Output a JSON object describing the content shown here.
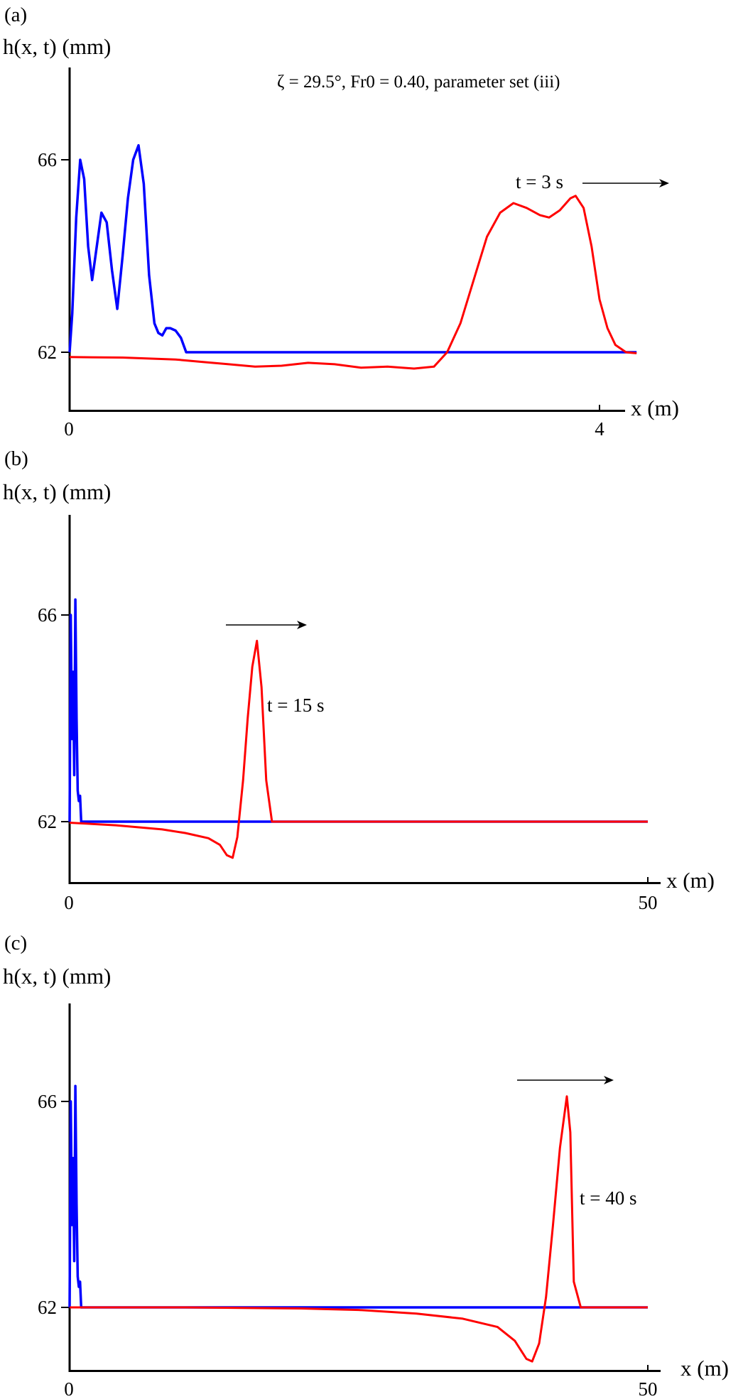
{
  "chart_data": [
    {
      "type": "line",
      "panel_label": "(a)",
      "ylabel": "h(x, t) (mm)",
      "xlabel": "x (m)",
      "annotation": "ζ = 29.5°, Fr0 = 0.40, parameter set (iii)",
      "time_label": "t = 3 s",
      "x_ticks": [
        "0",
        "4"
      ],
      "y_ticks": [
        "66",
        "62"
      ],
      "xlim": [
        0,
        4.3
      ],
      "ylim": [
        60.8,
        68
      ],
      "series": [
        {
          "color": "#0000ff",
          "x": [
            0,
            0.02,
            0.05,
            0.08,
            0.11,
            0.14,
            0.17,
            0.2,
            0.24,
            0.28,
            0.32,
            0.36,
            0.4,
            0.44,
            0.48,
            0.52,
            0.56,
            0.6,
            0.64,
            0.67,
            0.7,
            0.73,
            0.76,
            0.8,
            0.84,
            0.88,
            0.92,
            0.96,
            1.0,
            2.0,
            3.0,
            4.28
          ],
          "y": [
            62,
            62.8,
            64.8,
            66.0,
            65.6,
            64.2,
            63.5,
            64.1,
            64.9,
            64.7,
            63.7,
            62.9,
            64.0,
            65.2,
            66.0,
            66.3,
            65.5,
            63.6,
            62.6,
            62.4,
            62.35,
            62.5,
            62.5,
            62.45,
            62.3,
            62.0,
            62.0,
            62.0,
            62.0,
            62.0,
            62.0,
            62.0
          ]
        },
        {
          "color": "#ff0000",
          "x": [
            0,
            0.4,
            0.8,
            1.0,
            1.2,
            1.4,
            1.6,
            1.8,
            2.0,
            2.2,
            2.4,
            2.6,
            2.75,
            2.85,
            2.95,
            3.05,
            3.15,
            3.25,
            3.35,
            3.45,
            3.55,
            3.62,
            3.7,
            3.78,
            3.82,
            3.88,
            3.94,
            4.0,
            4.06,
            4.12,
            4.2,
            4.28
          ],
          "y": [
            61.9,
            61.89,
            61.85,
            61.8,
            61.75,
            61.7,
            61.72,
            61.78,
            61.75,
            61.68,
            61.7,
            61.66,
            61.7,
            62.0,
            62.6,
            63.5,
            64.4,
            64.9,
            65.1,
            65.0,
            64.85,
            64.8,
            64.95,
            65.2,
            65.25,
            65.0,
            64.2,
            63.1,
            62.5,
            62.15,
            62.0,
            61.98
          ]
        }
      ]
    },
    {
      "type": "line",
      "panel_label": "(b)",
      "ylabel": "h(x, t) (mm)",
      "xlabel": "x (m)",
      "time_label": "t = 15 s",
      "x_ticks": [
        "0",
        "50"
      ],
      "y_ticks": [
        "66",
        "62"
      ],
      "xlim": [
        0,
        51
      ],
      "ylim": [
        60.8,
        68
      ],
      "series": [
        {
          "color": "#0000ff",
          "x": [
            0,
            0.1,
            0.2,
            0.3,
            0.4,
            0.5,
            0.6,
            0.7,
            0.8,
            0.9,
            1.0,
            1.2,
            50
          ],
          "y": [
            62,
            66.0,
            63.6,
            64.9,
            62.9,
            66.3,
            64.0,
            62.6,
            62.4,
            62.5,
            62.0,
            62.0,
            62.0
          ]
        },
        {
          "color": "#ff0000",
          "x": [
            0,
            4,
            8,
            10,
            12,
            13,
            13.6,
            14.1,
            14.5,
            15,
            15.4,
            15.8,
            16.2,
            16.6,
            17,
            17.5,
            18,
            20,
            30,
            40,
            50
          ],
          "y": [
            61.98,
            61.93,
            61.85,
            61.78,
            61.68,
            61.55,
            61.35,
            61.3,
            61.7,
            62.8,
            64.0,
            65.0,
            65.5,
            64.6,
            62.8,
            62.0,
            62.0,
            62.0,
            62.0,
            62.0,
            62.0
          ]
        }
      ]
    },
    {
      "type": "line",
      "panel_label": "(c)",
      "ylabel": "h(x, t) (mm)",
      "xlabel": "x (m)",
      "time_label": "t = 40 s",
      "x_ticks": [
        "0",
        "50"
      ],
      "y_ticks": [
        "66",
        "62"
      ],
      "xlim": [
        0,
        51
      ],
      "ylim": [
        60.8,
        68
      ],
      "series": [
        {
          "color": "#0000ff",
          "x": [
            0,
            0.1,
            0.2,
            0.3,
            0.4,
            0.5,
            0.6,
            0.7,
            0.8,
            0.9,
            1.0,
            1.2,
            50
          ],
          "y": [
            62,
            66.0,
            63.6,
            64.9,
            62.9,
            66.3,
            64.0,
            62.6,
            62.4,
            62.5,
            62.0,
            62.0,
            62.0
          ]
        },
        {
          "color": "#ff0000",
          "x": [
            0,
            10,
            20,
            25,
            30,
            34,
            37,
            38.5,
            39.5,
            40,
            40.6,
            41.2,
            41.8,
            42.4,
            43,
            43.3,
            43.6,
            44.2,
            45,
            50
          ],
          "y": [
            62.0,
            62.0,
            61.98,
            61.95,
            61.88,
            61.78,
            61.62,
            61.35,
            61.0,
            60.95,
            61.3,
            62.2,
            63.6,
            65.1,
            66.1,
            65.4,
            62.5,
            62.0,
            62.0,
            62.0
          ]
        }
      ]
    }
  ]
}
